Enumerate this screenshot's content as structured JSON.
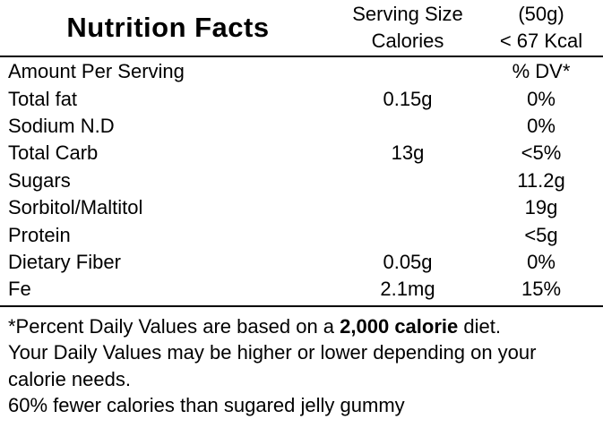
{
  "header": {
    "title": "Nutrition Facts",
    "serving_size_label": "Serving Size",
    "serving_size_value": "(50g)",
    "calories_label": "Calories",
    "calories_value": "< 67 Kcal"
  },
  "table": {
    "amount_per_serving_label": "Amount Per Serving",
    "dv_column_header": "% DV*",
    "rows": [
      {
        "name": "Total fat",
        "amount": "0.15g",
        "dv": "0%"
      },
      {
        "name": "Sodium N.D",
        "amount": "",
        "dv": "0%"
      },
      {
        "name": "Total Carb",
        "amount": "13g",
        "dv": "<5%"
      },
      {
        "name": "Sugars",
        "amount": "",
        "dv": "11.2g"
      },
      {
        "name": "Sorbitol/Maltitol",
        "amount": "",
        "dv": "19g"
      },
      {
        "name": "Protein",
        "amount": "",
        "dv": "<5g"
      },
      {
        "name": "Dietary Fiber",
        "amount": "0.05g",
        "dv": "0%"
      },
      {
        "name": "Fe",
        "amount": "2.1mg",
        "dv": "15%"
      }
    ]
  },
  "footnote": {
    "dv_note_prefix": "*Percent Daily Values are based on a ",
    "dv_note_bold": "2,000 calorie",
    "dv_note_suffix": " diet.",
    "dv_note_line2": "Your Daily Values may be higher or lower depending on your calorie needs.",
    "comparison_note": "60% fewer calories than sugared jelly gummy"
  },
  "colors": {
    "background": "#ffffff",
    "text": "#000000",
    "rule": "#000000"
  }
}
